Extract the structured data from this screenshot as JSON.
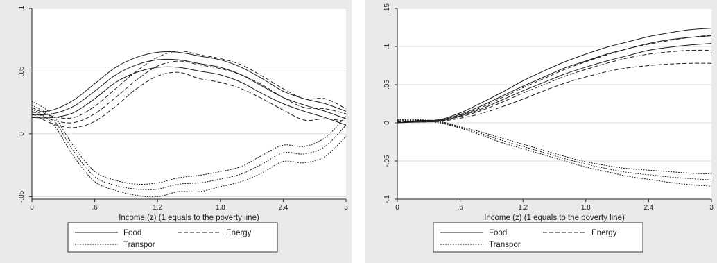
{
  "chart_data": [
    {
      "type": "line",
      "xlabel": "Income (z)  (1 equals to the poverty line)",
      "ylabel": "",
      "xlim": [
        0,
        3
      ],
      "ylim": [
        -0.052,
        0.1
      ],
      "xticks": [
        0,
        0.6,
        1.2,
        1.8,
        2.4,
        3
      ],
      "xtick_labels": [
        "0",
        ".6",
        "1.2",
        "1.8",
        "2.4",
        "3"
      ],
      "yticks": [
        -0.05,
        0,
        0.05,
        0.1
      ],
      "ytick_labels": [
        "-.05",
        "0",
        ".05",
        ".1"
      ],
      "grid": "horizontal",
      "legend": {
        "position": "bottom",
        "entries": [
          {
            "label": "Food",
            "style": "solid"
          },
          {
            "label": "Energy",
            "style": "dashed"
          },
          {
            "label": "Transpor",
            "style": "dotted"
          }
        ]
      },
      "x": [
        0,
        0.2,
        0.4,
        0.6,
        0.8,
        1.0,
        1.2,
        1.4,
        1.6,
        1.8,
        2.0,
        2.2,
        2.4,
        2.6,
        2.8,
        3.0
      ],
      "series": [
        {
          "group": "Food",
          "style": "solid",
          "values": [
            0.017,
            0.019,
            0.027,
            0.04,
            0.053,
            0.061,
            0.065,
            0.065,
            0.062,
            0.059,
            0.053,
            0.044,
            0.034,
            0.028,
            0.024,
            0.018
          ]
        },
        {
          "group": "Food",
          "style": "solid",
          "values": [
            0.015,
            0.016,
            0.022,
            0.034,
            0.047,
            0.055,
            0.059,
            0.059,
            0.056,
            0.053,
            0.047,
            0.038,
            0.029,
            0.023,
            0.018,
            0.012
          ]
        },
        {
          "group": "Food",
          "style": "solid",
          "values": [
            0.013,
            0.013,
            0.017,
            0.028,
            0.041,
            0.049,
            0.053,
            0.053,
            0.05,
            0.047,
            0.041,
            0.032,
            0.024,
            0.018,
            0.013,
            0.007
          ]
        },
        {
          "group": "Energy",
          "style": "dashed",
          "values": [
            0.021,
            0.014,
            0.013,
            0.022,
            0.036,
            0.05,
            0.061,
            0.066,
            0.063,
            0.06,
            0.055,
            0.046,
            0.036,
            0.028,
            0.028,
            0.02
          ]
        },
        {
          "group": "Energy",
          "style": "dashed",
          "values": [
            0.018,
            0.011,
            0.009,
            0.016,
            0.029,
            0.043,
            0.054,
            0.058,
            0.055,
            0.052,
            0.047,
            0.039,
            0.029,
            0.021,
            0.02,
            0.016
          ]
        },
        {
          "group": "Energy",
          "style": "dashed",
          "values": [
            0.016,
            0.008,
            0.005,
            0.01,
            0.022,
            0.036,
            0.046,
            0.049,
            0.044,
            0.041,
            0.036,
            0.028,
            0.019,
            0.011,
            0.012,
            0.01
          ]
        },
        {
          "group": "Transpor",
          "style": "dotted",
          "values": [
            0.026,
            0.015,
            -0.01,
            -0.03,
            -0.037,
            -0.04,
            -0.039,
            -0.035,
            -0.033,
            -0.03,
            -0.026,
            -0.017,
            -0.009,
            -0.01,
            -0.003,
            0.014
          ]
        },
        {
          "group": "Transpor",
          "style": "dotted",
          "values": [
            0.023,
            0.012,
            -0.014,
            -0.034,
            -0.041,
            -0.044,
            -0.044,
            -0.04,
            -0.039,
            -0.036,
            -0.032,
            -0.024,
            -0.015,
            -0.016,
            -0.01,
            0.007
          ]
        },
        {
          "group": "Transpor",
          "style": "dotted",
          "values": [
            0.02,
            0.008,
            -0.018,
            -0.038,
            -0.045,
            -0.049,
            -0.05,
            -0.046,
            -0.046,
            -0.042,
            -0.038,
            -0.031,
            -0.022,
            -0.023,
            -0.018,
            -0.002
          ]
        }
      ]
    },
    {
      "type": "line",
      "xlabel": "Income (z)  (1 equals to the poverty line)",
      "ylabel": "",
      "xlim": [
        0,
        3
      ],
      "ylim": [
        -0.1,
        0.15
      ],
      "xticks": [
        0,
        0.6,
        1.2,
        1.8,
        2.4,
        3
      ],
      "xtick_labels": [
        "0",
        ".6",
        "1.2",
        "1.8",
        "2.4",
        "3"
      ],
      "yticks": [
        -0.1,
        -0.05,
        0,
        0.05,
        0.1,
        0.15
      ],
      "ytick_labels": [
        "-.1",
        "-.05",
        "0",
        ".05",
        ".1",
        ".15"
      ],
      "grid": "horizontal",
      "legend": {
        "position": "bottom",
        "entries": [
          {
            "label": "Food",
            "style": "solid"
          },
          {
            "label": "Energy",
            "style": "dashed"
          },
          {
            "label": "Transpor",
            "style": "dotted"
          }
        ]
      },
      "x": [
        0,
        0.2,
        0.4,
        0.6,
        0.8,
        1.0,
        1.2,
        1.4,
        1.6,
        1.8,
        2.0,
        2.2,
        2.4,
        2.6,
        2.8,
        3.0
      ],
      "series": [
        {
          "group": "Food",
          "style": "solid",
          "values": [
            0.0,
            0.003,
            0.004,
            0.013,
            0.026,
            0.04,
            0.055,
            0.068,
            0.08,
            0.09,
            0.099,
            0.106,
            0.113,
            0.118,
            0.122,
            0.124
          ]
        },
        {
          "group": "Food",
          "style": "solid",
          "values": [
            0.0,
            0.002,
            0.003,
            0.011,
            0.022,
            0.035,
            0.048,
            0.06,
            0.072,
            0.081,
            0.09,
            0.097,
            0.104,
            0.109,
            0.112,
            0.114
          ]
        },
        {
          "group": "Food",
          "style": "solid",
          "values": [
            0.0,
            0.001,
            0.002,
            0.009,
            0.018,
            0.03,
            0.042,
            0.053,
            0.064,
            0.073,
            0.081,
            0.088,
            0.095,
            0.099,
            0.102,
            0.104
          ]
        },
        {
          "group": "Energy",
          "style": "dashed",
          "values": [
            0.001,
            0.003,
            0.004,
            0.01,
            0.02,
            0.033,
            0.046,
            0.058,
            0.07,
            0.08,
            0.089,
            0.097,
            0.103,
            0.108,
            0.112,
            0.115
          ]
        },
        {
          "group": "Energy",
          "style": "dashed",
          "values": [
            0.001,
            0.002,
            0.003,
            0.008,
            0.016,
            0.027,
            0.039,
            0.05,
            0.061,
            0.07,
            0.078,
            0.085,
            0.09,
            0.093,
            0.095,
            0.095
          ]
        },
        {
          "group": "Energy",
          "style": "dashed",
          "values": [
            0.001,
            0.001,
            0.002,
            0.006,
            0.012,
            0.021,
            0.031,
            0.042,
            0.052,
            0.06,
            0.067,
            0.072,
            0.075,
            0.077,
            0.078,
            0.078
          ]
        },
        {
          "group": "Transpor",
          "style": "dotted",
          "values": [
            0.004,
            0.004,
            0.002,
            -0.005,
            -0.012,
            -0.02,
            -0.028,
            -0.036,
            -0.044,
            -0.051,
            -0.056,
            -0.06,
            -0.062,
            -0.064,
            -0.066,
            -0.067
          ]
        },
        {
          "group": "Transpor",
          "style": "dotted",
          "values": [
            0.003,
            0.003,
            0.001,
            -0.006,
            -0.014,
            -0.023,
            -0.031,
            -0.039,
            -0.047,
            -0.054,
            -0.06,
            -0.065,
            -0.068,
            -0.071,
            -0.073,
            -0.075
          ]
        },
        {
          "group": "Transpor",
          "style": "dotted",
          "values": [
            0.002,
            0.002,
            0.0,
            -0.007,
            -0.016,
            -0.026,
            -0.034,
            -0.042,
            -0.05,
            -0.058,
            -0.064,
            -0.07,
            -0.074,
            -0.078,
            -0.081,
            -0.083
          ]
        }
      ]
    }
  ]
}
